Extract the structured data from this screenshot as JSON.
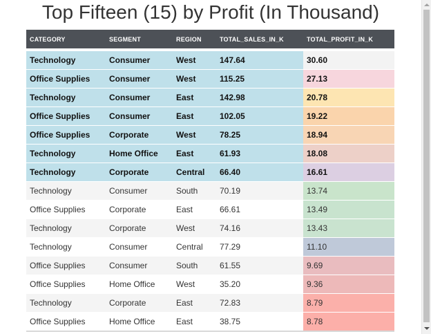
{
  "title": "Top Fifteen (15) by Profit (In Thousand)",
  "columns": [
    "CATEGORY",
    "SEGMENT",
    "REGION",
    "TOTAL_SALES_IN_K",
    "TOTAL_PROFIT_IN_K"
  ],
  "colors": {
    "header_bg": "#4d5157",
    "highlight_row_bg": "#bfe0ea",
    "row_even_bg": "#f4f4f4",
    "row_odd_bg": "#ffffff"
  },
  "rows": [
    {
      "category": "Technology",
      "segment": "Consumer",
      "region": "West",
      "sales": "147.64",
      "profit": "30.60",
      "profit_color": "#f3f3f3",
      "highlight": true
    },
    {
      "category": "Office Supplies",
      "segment": "Consumer",
      "region": "West",
      "sales": "115.25",
      "profit": "27.13",
      "profit_color": "#f7d6dd",
      "highlight": true
    },
    {
      "category": "Technology",
      "segment": "Consumer",
      "region": "East",
      "sales": "142.98",
      "profit": "20.78",
      "profit_color": "#fde5b2",
      "highlight": true
    },
    {
      "category": "Office Supplies",
      "segment": "Consumer",
      "region": "East",
      "sales": "102.05",
      "profit": "19.22",
      "profit_color": "#fad4ac",
      "highlight": true
    },
    {
      "category": "Office Supplies",
      "segment": "Corporate",
      "region": "West",
      "sales": "78.25",
      "profit": "18.94",
      "profit_color": "#f8d5b4",
      "highlight": true
    },
    {
      "category": "Technology",
      "segment": "Home Office",
      "region": "East",
      "sales": "61.93",
      "profit": "18.08",
      "profit_color": "#edd0c8",
      "highlight": true
    },
    {
      "category": "Technology",
      "segment": "Corporate",
      "region": "Central",
      "sales": "66.40",
      "profit": "16.61",
      "profit_color": "#dccfe2",
      "highlight": true
    },
    {
      "category": "Technology",
      "segment": "Consumer",
      "region": "South",
      "sales": "70.19",
      "profit": "13.74",
      "profit_color": "#c9e4cb",
      "highlight": false
    },
    {
      "category": "Office Supplies",
      "segment": "Corporate",
      "region": "East",
      "sales": "66.61",
      "profit": "13.49",
      "profit_color": "#c8e3ce",
      "highlight": false
    },
    {
      "category": "Technology",
      "segment": "Corporate",
      "region": "West",
      "sales": "74.16",
      "profit": "13.43",
      "profit_color": "#c9e3cf",
      "highlight": false
    },
    {
      "category": "Technology",
      "segment": "Consumer",
      "region": "Central",
      "sales": "77.29",
      "profit": "11.10",
      "profit_color": "#bfc9d9",
      "highlight": false
    },
    {
      "category": "Office Supplies",
      "segment": "Consumer",
      "region": "South",
      "sales": "61.55",
      "profit": "9.69",
      "profit_color": "#e9bcbf",
      "highlight": false
    },
    {
      "category": "Office Supplies",
      "segment": "Home Office",
      "region": "West",
      "sales": "35.20",
      "profit": "9.36",
      "profit_color": "#edb9b9",
      "highlight": false
    },
    {
      "category": "Technology",
      "segment": "Corporate",
      "region": "East",
      "sales": "72.83",
      "profit": "8.79",
      "profit_color": "#fbb0aa",
      "highlight": false
    },
    {
      "category": "Office Supplies",
      "segment": "Home Office",
      "region": "East",
      "sales": "38.75",
      "profit": "8.78",
      "profit_color": "#fcafa9",
      "highlight": false
    }
  ]
}
